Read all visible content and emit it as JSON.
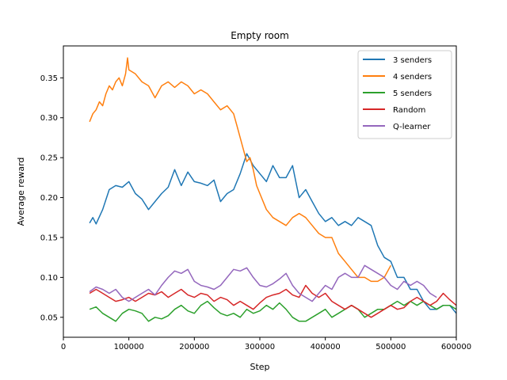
{
  "chart_data": {
    "type": "line",
    "title": "Empty room",
    "xlabel": "Step",
    "ylabel": "Average reward",
    "xlim": [
      0,
      600000
    ],
    "ylim": [
      0.025,
      0.39
    ],
    "xticks": [
      0,
      100000,
      200000,
      300000,
      400000,
      500000,
      600000
    ],
    "xtick_labels": [
      "0",
      "100000",
      "200000",
      "300000",
      "400000",
      "500000",
      "600000"
    ],
    "yticks": [
      0.05,
      0.1,
      0.15,
      0.2,
      0.25,
      0.3,
      0.35
    ],
    "ytick_labels": [
      "0.05",
      "0.10",
      "0.15",
      "0.20",
      "0.25",
      "0.30",
      "0.35"
    ],
    "grid": false,
    "legend_position": "top-right",
    "series": [
      {
        "name": "3 senders",
        "color": "#1f77b4",
        "x": [
          40000,
          45000,
          50000,
          60000,
          70000,
          80000,
          90000,
          100000,
          110000,
          120000,
          130000,
          140000,
          150000,
          160000,
          170000,
          180000,
          190000,
          200000,
          210000,
          220000,
          230000,
          240000,
          250000,
          260000,
          270000,
          280000,
          290000,
          300000,
          310000,
          320000,
          330000,
          340000,
          350000,
          360000,
          370000,
          380000,
          390000,
          400000,
          410000,
          420000,
          430000,
          440000,
          450000,
          460000,
          470000,
          480000,
          490000,
          500000,
          510000,
          520000,
          530000,
          540000,
          550000,
          560000,
          570000,
          580000,
          590000,
          600000
        ],
        "y": [
          0.168,
          0.175,
          0.167,
          0.185,
          0.21,
          0.215,
          0.213,
          0.22,
          0.205,
          0.198,
          0.185,
          0.195,
          0.205,
          0.213,
          0.235,
          0.215,
          0.232,
          0.22,
          0.218,
          0.215,
          0.222,
          0.195,
          0.205,
          0.21,
          0.23,
          0.255,
          0.24,
          0.23,
          0.22,
          0.24,
          0.225,
          0.225,
          0.24,
          0.2,
          0.21,
          0.195,
          0.18,
          0.17,
          0.175,
          0.165,
          0.17,
          0.165,
          0.175,
          0.17,
          0.165,
          0.14,
          0.125,
          0.12,
          0.1,
          0.1,
          0.085,
          0.085,
          0.07,
          0.06,
          0.06,
          0.065,
          0.065,
          0.055
        ]
      },
      {
        "name": "4 senders",
        "color": "#ff7f0e",
        "x": [
          40000,
          45000,
          50000,
          55000,
          60000,
          65000,
          70000,
          75000,
          80000,
          85000,
          90000,
          95000,
          98000,
          100000,
          110000,
          120000,
          130000,
          140000,
          150000,
          160000,
          170000,
          180000,
          190000,
          200000,
          210000,
          220000,
          230000,
          240000,
          250000,
          260000,
          265000,
          270000,
          275000,
          280000,
          285000,
          290000,
          295000,
          300000,
          310000,
          320000,
          330000,
          340000,
          350000,
          360000,
          370000,
          380000,
          390000,
          400000,
          410000,
          420000,
          430000,
          440000,
          450000,
          460000,
          470000,
          480000,
          490000,
          500000
        ],
        "y": [
          0.295,
          0.305,
          0.31,
          0.32,
          0.315,
          0.33,
          0.34,
          0.335,
          0.345,
          0.35,
          0.34,
          0.355,
          0.375,
          0.36,
          0.355,
          0.345,
          0.34,
          0.325,
          0.34,
          0.345,
          0.338,
          0.345,
          0.34,
          0.33,
          0.335,
          0.33,
          0.32,
          0.31,
          0.315,
          0.305,
          0.29,
          0.275,
          0.26,
          0.245,
          0.25,
          0.235,
          0.215,
          0.205,
          0.185,
          0.175,
          0.17,
          0.165,
          0.175,
          0.18,
          0.175,
          0.165,
          0.155,
          0.15,
          0.15,
          0.13,
          0.12,
          0.11,
          0.1,
          0.1,
          0.095,
          0.095,
          0.1,
          0.115
        ]
      },
      {
        "name": "5 senders",
        "color": "#2ca02c",
        "x": [
          40000,
          50000,
          60000,
          70000,
          80000,
          90000,
          100000,
          110000,
          120000,
          130000,
          140000,
          150000,
          160000,
          170000,
          180000,
          190000,
          200000,
          210000,
          220000,
          230000,
          240000,
          250000,
          260000,
          270000,
          280000,
          290000,
          300000,
          310000,
          320000,
          330000,
          340000,
          350000,
          360000,
          370000,
          380000,
          390000,
          400000,
          410000,
          420000,
          430000,
          440000,
          450000,
          460000,
          470000,
          480000,
          490000,
          500000,
          510000,
          520000,
          530000,
          540000,
          550000,
          560000,
          570000,
          580000,
          590000,
          600000
        ],
        "y": [
          0.06,
          0.063,
          0.055,
          0.05,
          0.045,
          0.055,
          0.06,
          0.058,
          0.055,
          0.045,
          0.05,
          0.048,
          0.052,
          0.06,
          0.065,
          0.058,
          0.055,
          0.065,
          0.07,
          0.062,
          0.055,
          0.052,
          0.055,
          0.05,
          0.06,
          0.055,
          0.058,
          0.065,
          0.06,
          0.068,
          0.06,
          0.05,
          0.045,
          0.045,
          0.05,
          0.055,
          0.06,
          0.05,
          0.055,
          0.06,
          0.065,
          0.06,
          0.05,
          0.055,
          0.06,
          0.06,
          0.065,
          0.07,
          0.065,
          0.07,
          0.065,
          0.07,
          0.065,
          0.06,
          0.065,
          0.065,
          0.06
        ]
      },
      {
        "name": "Random",
        "color": "#d62728",
        "x": [
          40000,
          50000,
          60000,
          70000,
          80000,
          90000,
          100000,
          110000,
          120000,
          130000,
          140000,
          150000,
          160000,
          170000,
          180000,
          190000,
          200000,
          210000,
          220000,
          230000,
          240000,
          250000,
          260000,
          270000,
          280000,
          290000,
          300000,
          310000,
          320000,
          330000,
          340000,
          350000,
          360000,
          370000,
          380000,
          390000,
          400000,
          410000,
          420000,
          430000,
          440000,
          450000,
          460000,
          470000,
          480000,
          490000,
          500000,
          510000,
          520000,
          530000,
          540000,
          550000,
          560000,
          570000,
          580000,
          590000,
          600000
        ],
        "y": [
          0.08,
          0.085,
          0.08,
          0.075,
          0.07,
          0.072,
          0.075,
          0.07,
          0.075,
          0.08,
          0.078,
          0.082,
          0.075,
          0.08,
          0.085,
          0.078,
          0.075,
          0.08,
          0.078,
          0.07,
          0.075,
          0.072,
          0.065,
          0.07,
          0.065,
          0.06,
          0.068,
          0.075,
          0.078,
          0.08,
          0.085,
          0.078,
          0.075,
          0.09,
          0.08,
          0.075,
          0.08,
          0.07,
          0.065,
          0.06,
          0.065,
          0.06,
          0.055,
          0.05,
          0.055,
          0.06,
          0.065,
          0.06,
          0.062,
          0.07,
          0.075,
          0.07,
          0.065,
          0.07,
          0.08,
          0.072,
          0.065
        ]
      },
      {
        "name": "Q-learner",
        "color": "#9467bd",
        "x": [
          40000,
          50000,
          60000,
          70000,
          80000,
          90000,
          100000,
          110000,
          120000,
          130000,
          140000,
          150000,
          160000,
          170000,
          180000,
          190000,
          200000,
          210000,
          220000,
          230000,
          240000,
          250000,
          260000,
          270000,
          280000,
          290000,
          300000,
          310000,
          320000,
          330000,
          340000,
          350000,
          360000,
          370000,
          380000,
          390000,
          400000,
          410000,
          420000,
          430000,
          440000,
          450000,
          460000,
          470000,
          480000,
          490000,
          500000,
          510000,
          520000,
          530000,
          540000,
          550000,
          560000,
          570000
        ],
        "y": [
          0.082,
          0.088,
          0.085,
          0.08,
          0.085,
          0.075,
          0.07,
          0.075,
          0.08,
          0.085,
          0.078,
          0.09,
          0.1,
          0.108,
          0.105,
          0.11,
          0.095,
          0.09,
          0.088,
          0.085,
          0.09,
          0.1,
          0.11,
          0.108,
          0.112,
          0.1,
          0.09,
          0.088,
          0.092,
          0.098,
          0.105,
          0.09,
          0.08,
          0.075,
          0.07,
          0.08,
          0.09,
          0.085,
          0.1,
          0.105,
          0.1,
          0.1,
          0.115,
          0.11,
          0.105,
          0.1,
          0.09,
          0.085,
          0.095,
          0.09,
          0.095,
          0.09,
          0.08,
          0.075
        ]
      }
    ]
  }
}
